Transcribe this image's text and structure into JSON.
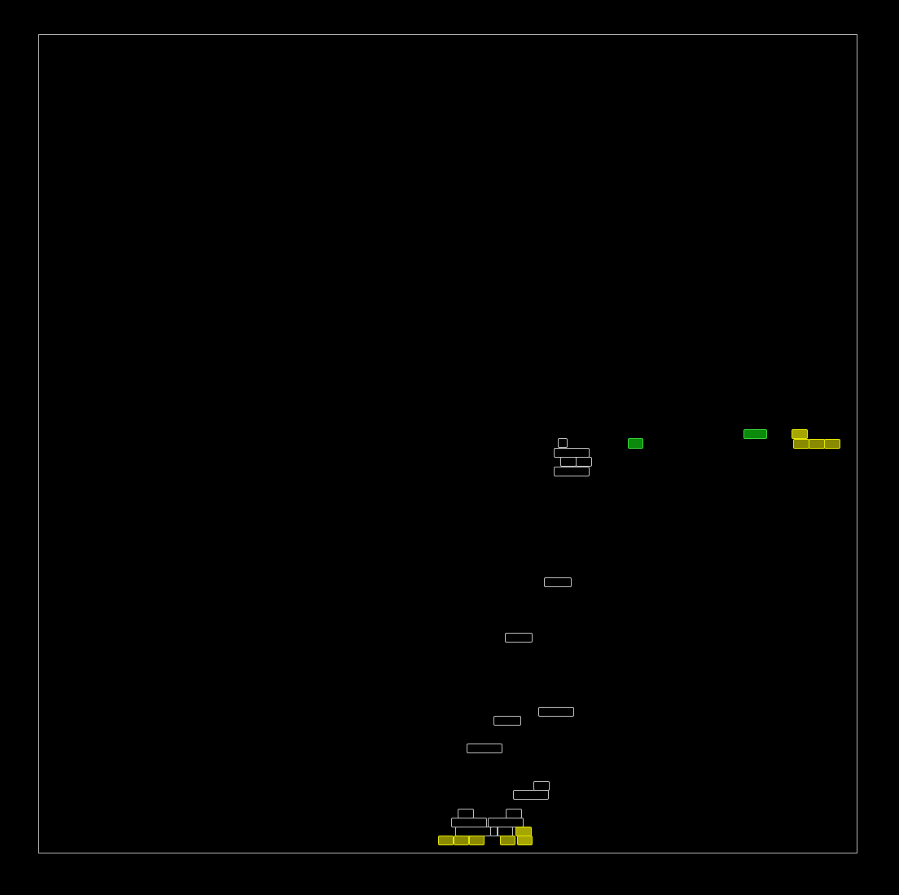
{
  "game": {
    "board_color": "#000000",
    "border_color": "#b4b4b4",
    "block_types": {
      "outline": "#bdbdbd",
      "yellow": "#8a8a00",
      "green": "#0b8a0b"
    }
  }
}
